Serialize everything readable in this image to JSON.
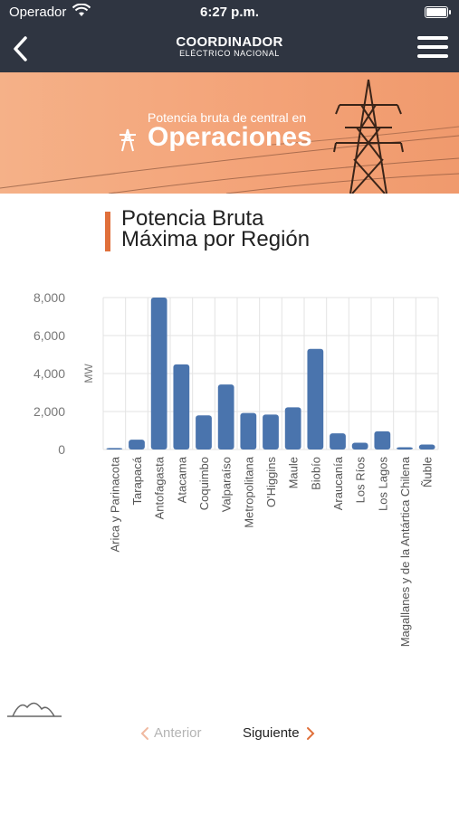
{
  "status_bar": {
    "carrier": "Operador",
    "time": "6:27 p.m."
  },
  "header": {
    "logo_line1": "COORDINADOR",
    "logo_line2": "ELÉCTRICO NACIONAL"
  },
  "banner": {
    "subtitle": "Potencia bruta de central en",
    "title": "Operaciones"
  },
  "page_title_line1": "Potencia Bruta",
  "page_title_line2": "Máxima por Región",
  "pager": {
    "prev_label": "Anterior",
    "next_label": "Siguiente"
  },
  "colors": {
    "bar": "#4a74ad",
    "accent": "#e0703b",
    "navbar": "#2f3541",
    "banner": "#f3a277"
  },
  "chart_data": {
    "type": "bar",
    "ylabel": "MW",
    "ylim": [
      0,
      8000
    ],
    "yticks": [
      "8,000",
      "6,000",
      "4,000",
      "2,000",
      "0"
    ],
    "ytick_values": [
      8000,
      6000,
      4000,
      2000,
      0
    ],
    "categories": [
      "Arica y Parinacota",
      "Tarapacá",
      "Antofagasta",
      "Atacama",
      "Coquimbo",
      "Valparaíso",
      "Metropolitana",
      "O'Higgins",
      "Maule",
      "Biobío",
      "Araucanía",
      "Los Ríos",
      "Los Lagos",
      "Magallanes y de la Antártica Chilena",
      "Ñuble"
    ],
    "values": [
      80,
      520,
      8000,
      4480,
      1800,
      3420,
      1920,
      1840,
      2220,
      5300,
      850,
      360,
      960,
      120,
      260
    ],
    "grid": true,
    "legend": "none"
  }
}
